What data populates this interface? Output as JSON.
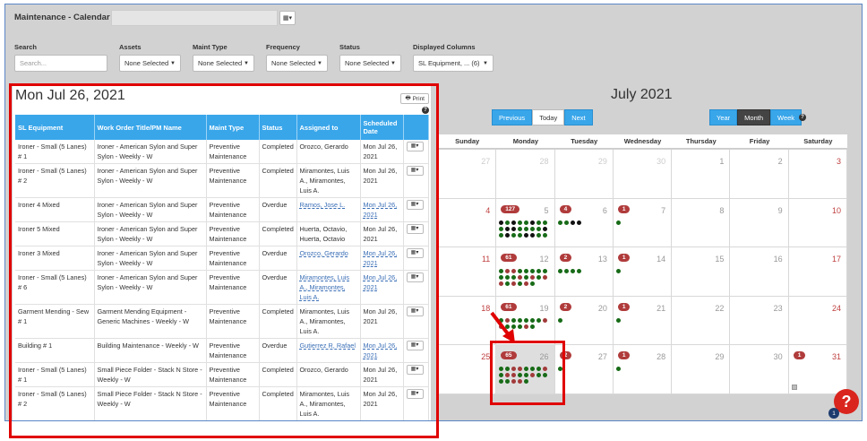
{
  "app": {
    "title": "Maintenance - Calendar"
  },
  "filters": [
    {
      "label": "Search",
      "value": "",
      "placeholder": "Search..."
    },
    {
      "label": "Assets",
      "value": "None Selected"
    },
    {
      "label": "Maint Type",
      "value": "None Selected"
    },
    {
      "label": "Frequency",
      "value": "None Selected"
    },
    {
      "label": "Status",
      "value": "None Selected"
    },
    {
      "label": "Displayed Columns",
      "value": "SL Equipment, ... (6)"
    }
  ],
  "list": {
    "date_heading": "Mon Jul 26, 2021",
    "print_label": "Print",
    "columns": [
      "SL Equipment",
      "Work Order Title/PM Name",
      "Maint Type",
      "Status",
      "Assigned to",
      "Scheduled Date"
    ],
    "rows": [
      [
        "Ironer - Small (5 Lanes) # 1",
        "Ironer - American Sylon and Super Sylon - Weekly - W",
        "Preventive Maintenance",
        "Completed",
        "Orozco, Gerardo",
        "Mon Jul 26, 2021"
      ],
      [
        "Ironer - Small (5 Lanes) # 2",
        "Ironer - American Sylon and Super Sylon - Weekly - W",
        "Preventive Maintenance",
        "Completed",
        "Miramontes, Luis A., Miramontes, Luis A.",
        "Mon Jul 26, 2021"
      ],
      [
        "Ironer 4 Mixed",
        "Ironer - American Sylon and Super Sylon - Weekly - W",
        "Preventive Maintenance",
        "Overdue",
        "Ramos, Jose L.",
        "Mon Jul 26, 2021"
      ],
      [
        "Ironer 5 Mixed",
        "Ironer - American Sylon and Super Sylon - Weekly - W",
        "Preventive Maintenance",
        "Completed",
        "Huerta, Octavio, Huerta, Octavio",
        "Mon Jul 26, 2021"
      ],
      [
        "Ironer 3 Mixed",
        "Ironer - American Sylon and Super Sylon - Weekly - W",
        "Preventive Maintenance",
        "Overdue",
        "Orozco, Gerardo",
        "Mon Jul 26, 2021"
      ],
      [
        "Ironer - Small (5 Lanes) # 6",
        "Ironer - American Sylon and Super Sylon - Weekly - W",
        "Preventive Maintenance",
        "Overdue",
        "Miramontes, Luis A., Miramontes, Luis A.",
        "Mon Jul 26, 2021"
      ],
      [
        "Garment Mending - Sew # 1",
        "Garment Mending Equipment - Generic Machines - Weekly - W",
        "Preventive Maintenance",
        "Completed",
        "Miramontes, Luis A., Miramontes, Luis A.",
        "Mon Jul 26, 2021"
      ],
      [
        "Building # 1",
        "Building Maintenance - Weekly - W",
        "Preventive Maintenance",
        "Overdue",
        "Gutierrez R, Rafael",
        "Mon Jul 26, 2021"
      ],
      [
        "Ironer - Small (5 Lanes) # 1",
        "Small Piece Folder - Stack N Store - Weekly - W",
        "Preventive Maintenance",
        "Completed",
        "Orozco, Gerardo",
        "Mon Jul 26, 2021"
      ],
      [
        "Ironer - Small (5 Lanes) # 2",
        "Small Piece Folder - Stack N Store - Weekly - W",
        "Preventive Maintenance",
        "Completed",
        "Miramontes, Luis A., Miramontes, Luis A.",
        "Mon Jul 26, 2021"
      ]
    ]
  },
  "calendar": {
    "title": "July 2021",
    "nav": [
      "Previous",
      "Today",
      "Next"
    ],
    "views": [
      "Year",
      "Month",
      "Week"
    ],
    "active_view": "Month",
    "weekdays": [
      "Sunday",
      "Monday",
      "Tuesday",
      "Wednesday",
      "Thursday",
      "Friday",
      "Saturday"
    ],
    "weeks": [
      [
        "27",
        "28",
        "29",
        "30",
        "1",
        "2",
        "3"
      ],
      [
        "4",
        "5",
        "6",
        "7",
        "8",
        "9",
        "10"
      ],
      [
        "11",
        "12",
        "13",
        "14",
        "15",
        "16",
        "17"
      ],
      [
        "18",
        "19",
        "20",
        "21",
        "22",
        "23",
        "24"
      ],
      [
        "25",
        "26",
        "27",
        "28",
        "29",
        "30",
        "31"
      ]
    ],
    "badges": {
      "1-1": "127",
      "1-2": "4",
      "1-3": "1",
      "2-1": "61",
      "2-2": "2",
      "2-3": "1",
      "3-1": "61",
      "3-2": "2",
      "3-3": "1",
      "4-1": "65",
      "4-2": "2",
      "4-3": "1",
      "4-6": "1"
    }
  },
  "help": {
    "label": "?",
    "count": "1"
  }
}
